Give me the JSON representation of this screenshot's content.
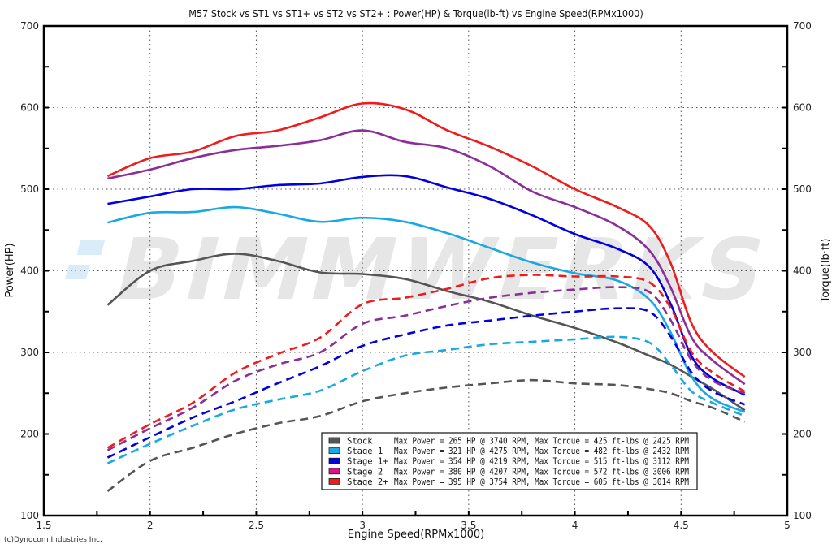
{
  "chart_data": {
    "type": "line",
    "title": "M57 Stock vs ST1 vs ST1+ vs ST2 vs ST2+ : Power(HP) & Torque(lb-ft) vs Engine Speed(RPMx1000)",
    "xlabel": "Engine Speed(RPMx1000)",
    "ylabel_left": "Power(HP)",
    "ylabel_right": "Torque(lb·ft)",
    "xlim": [
      1.5,
      5
    ],
    "ylim": [
      100,
      700
    ],
    "x_ticks": [
      "1.5",
      "2",
      "2.5",
      "3",
      "3.5",
      "4",
      "4.5",
      "5"
    ],
    "y_ticks": [
      "100",
      "200",
      "300",
      "400",
      "500",
      "600",
      "700"
    ],
    "grid": true,
    "legend_position": "bottom-center",
    "watermark": "BIMMWERKS",
    "copyright": "(c)Dynocom Industries Inc.",
    "x": [
      1.8,
      2.0,
      2.2,
      2.4,
      2.6,
      2.8,
      3.0,
      3.2,
      3.4,
      3.6,
      3.8,
      4.0,
      4.2,
      4.35,
      4.45,
      4.55,
      4.65,
      4.8
    ],
    "series": [
      {
        "name": "Stock",
        "color": "#555555",
        "legend_color": "#555555",
        "legend_text": "Max Power = 265 HP @ 3740 RPM, Max Torque = 425 ft-lbs @ 2425 RPM",
        "torque": [
          358,
          400,
          412,
          421,
          412,
          398,
          396,
          390,
          375,
          362,
          345,
          330,
          312,
          296,
          285,
          270,
          255,
          229
        ],
        "power": [
          130,
          167,
          183,
          200,
          213,
          222,
          240,
          250,
          257,
          262,
          266,
          262,
          260,
          255,
          250,
          240,
          232,
          215
        ]
      },
      {
        "name": "Stage 1",
        "color": "#18a8e4",
        "legend_color": "#1aa9e6",
        "legend_text": "Max Power = 321 HP @ 4275 RPM, Max Torque = 482 ft-lbs @ 2432 RPM",
        "torque": [
          459,
          471,
          472,
          478,
          470,
          460,
          465,
          460,
          446,
          428,
          410,
          397,
          388,
          365,
          325,
          270,
          243,
          227
        ],
        "power": [
          164,
          188,
          210,
          230,
          242,
          253,
          277,
          296,
          303,
          310,
          313,
          316,
          319,
          312,
          285,
          252,
          238,
          222
        ]
      },
      {
        "name": "Stage 1+",
        "color": "#0000e0",
        "legend_color": "#0000e0",
        "legend_text": "Max Power = 354 HP @ 4219 RPM, Max Torque = 515 ft-lbs @ 3112 RPM",
        "torque": [
          482,
          491,
          500,
          500,
          505,
          507,
          515,
          516,
          502,
          488,
          468,
          445,
          427,
          405,
          360,
          295,
          268,
          248
        ],
        "power": [
          171,
          196,
          220,
          240,
          262,
          283,
          308,
          322,
          333,
          339,
          345,
          350,
          354,
          350,
          320,
          275,
          252,
          236
        ]
      },
      {
        "name": "Stage 2",
        "color": "#8b2e9a",
        "legend_color": "#d4148a",
        "legend_text": "Max Power = 380 HP @ 4207 RPM, Max Torque = 572 ft-lbs @ 3006 RPM",
        "torque": [
          513,
          524,
          538,
          548,
          553,
          560,
          572,
          558,
          550,
          528,
          497,
          478,
          455,
          425,
          380,
          318,
          290,
          261
        ],
        "power": [
          180,
          207,
          232,
          265,
          285,
          300,
          335,
          345,
          357,
          367,
          373,
          377,
          380,
          374,
          340,
          290,
          265,
          250
        ]
      },
      {
        "name": "Stage 2+",
        "color": "#ee1c1c",
        "legend_color": "#ee1c1c",
        "legend_text": "Max Power = 395 HP @ 3754 RPM, Max Torque = 605 ft-lbs @ 3014 RPM",
        "torque": [
          516,
          538,
          546,
          565,
          572,
          588,
          605,
          598,
          572,
          552,
          528,
          500,
          478,
          455,
          410,
          335,
          300,
          270
        ],
        "power": [
          183,
          212,
          238,
          275,
          298,
          318,
          359,
          367,
          378,
          391,
          395,
          393,
          393,
          386,
          355,
          300,
          275,
          252
        ]
      }
    ]
  }
}
